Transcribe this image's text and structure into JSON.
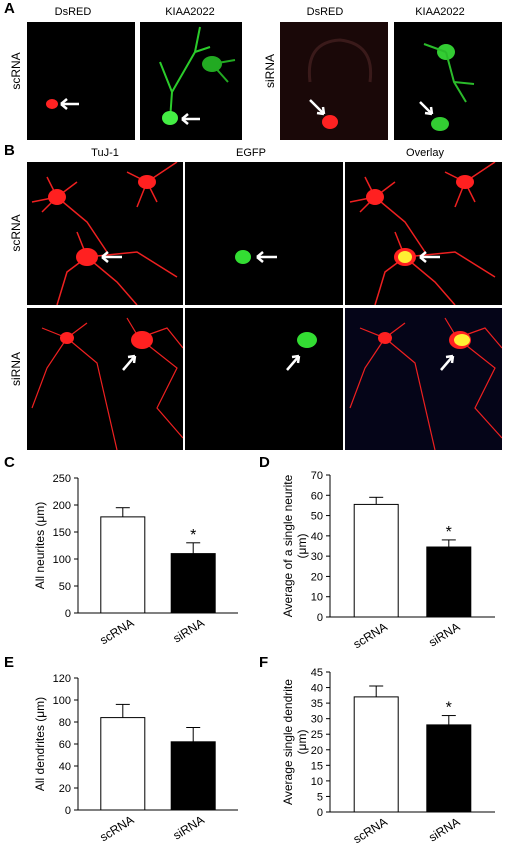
{
  "panelA": {
    "letter": "A",
    "group1": {
      "row_label": "scRNA",
      "col_labels": [
        "DsRED",
        "KIAA2022"
      ]
    },
    "group2": {
      "row_label": "siRNA",
      "col_labels": [
        "DsRED",
        "KIAA2022"
      ]
    }
  },
  "panelB": {
    "letter": "B",
    "col_labels": [
      "TuJ-1",
      "EGFP",
      "Overlay"
    ],
    "row_labels": [
      "scRNA",
      "siRNA"
    ]
  },
  "colors": {
    "red_stain": "#ff2020",
    "green_stain": "#33dd33",
    "yellow_overlay": "#ffee33"
  },
  "chart_data": [
    {
      "panel": "C",
      "type": "bar",
      "categories": [
        "scRNA",
        "siRNA"
      ],
      "values": [
        178,
        110
      ],
      "errors": [
        17,
        20
      ],
      "significance": [
        "",
        "*"
      ],
      "ylabel": "All neurites (μm)",
      "ylim": [
        0,
        250
      ],
      "yticks": [
        "0",
        "50",
        "100",
        "150",
        "200",
        "250"
      ],
      "bar_colors": [
        "#ffffff",
        "#000000"
      ]
    },
    {
      "panel": "D",
      "type": "bar",
      "categories": [
        "scRNA",
        "siRNA"
      ],
      "values": [
        55.5,
        34.5
      ],
      "errors": [
        3.5,
        3.5
      ],
      "significance": [
        "",
        "*"
      ],
      "ylabel": "Average of a single neurite",
      "ylabel2": "(μm)",
      "ylim": [
        0,
        70
      ],
      "yticks": [
        "0",
        "10",
        "20",
        "30",
        "40",
        "50",
        "60",
        "70"
      ],
      "bar_colors": [
        "#ffffff",
        "#000000"
      ]
    },
    {
      "panel": "E",
      "type": "bar",
      "categories": [
        "scRNA",
        "siRNA"
      ],
      "values": [
        84,
        62
      ],
      "errors": [
        12,
        13
      ],
      "significance": [
        "",
        ""
      ],
      "ylabel": "All dendrites (μm)",
      "ylim": [
        0,
        120
      ],
      "yticks": [
        "0",
        "20",
        "40",
        "60",
        "80",
        "100",
        "120"
      ],
      "bar_colors": [
        "#ffffff",
        "#000000"
      ]
    },
    {
      "panel": "F",
      "type": "bar",
      "categories": [
        "scRNA",
        "siRNA"
      ],
      "values": [
        37,
        28
      ],
      "errors": [
        3.5,
        3
      ],
      "significance": [
        "",
        "*"
      ],
      "ylabel": "Average single dendrite",
      "ylabel2": "(μm)",
      "ylim": [
        0,
        45
      ],
      "yticks": [
        "0",
        "5",
        "10",
        "15",
        "20",
        "25",
        "30",
        "35",
        "40",
        "45"
      ],
      "bar_colors": [
        "#ffffff",
        "#000000"
      ]
    }
  ]
}
